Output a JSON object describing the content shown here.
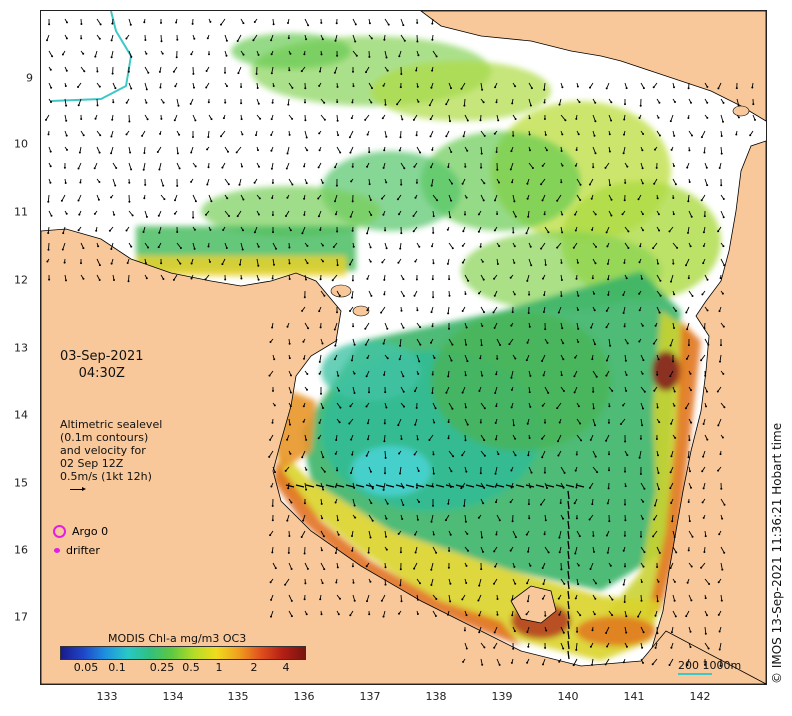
{
  "map": {
    "date": "03-Sep-2021",
    "time": "04:30Z",
    "altimetry_lines": [
      "Altimetric sealevel",
      "(0.1m contours)",
      "and velocity for",
      "02 Sep 12Z",
      "0.5m/s (1kt 12h)"
    ],
    "legend": {
      "argo": "Argo 0",
      "drifter": "drifter",
      "argo_color": "#e020e0",
      "drifter_color": "#e020e0"
    },
    "colorbar": {
      "title": "MODIS Chl-a mg/m3 OC3",
      "ticks": [
        "0.05",
        "0.1",
        "0.25",
        "0.5",
        "1",
        "2",
        "4"
      ],
      "colors": [
        "#1a1a8c",
        "#1e46c8",
        "#1e90e0",
        "#28c8c8",
        "#30c080",
        "#60c840",
        "#b4dc28",
        "#f0dc1e",
        "#f0a01e",
        "#e0501e",
        "#b41e14",
        "#781410"
      ]
    },
    "distance_scale": "200  1000m",
    "timestamp": "© IMOS 13-Sep-2021 11:36:21 Hobart time",
    "x_ticks": [
      "133",
      "134",
      "135",
      "136",
      "137",
      "138",
      "139",
      "140",
      "141",
      "142"
    ],
    "y_ticks": [
      "9",
      "10",
      "11",
      "12",
      "13",
      "14",
      "15",
      "16",
      "17"
    ],
    "colors": {
      "land": "#f8c89a",
      "coast": "#000000",
      "shelf_contour": "#3fc7c7"
    }
  }
}
